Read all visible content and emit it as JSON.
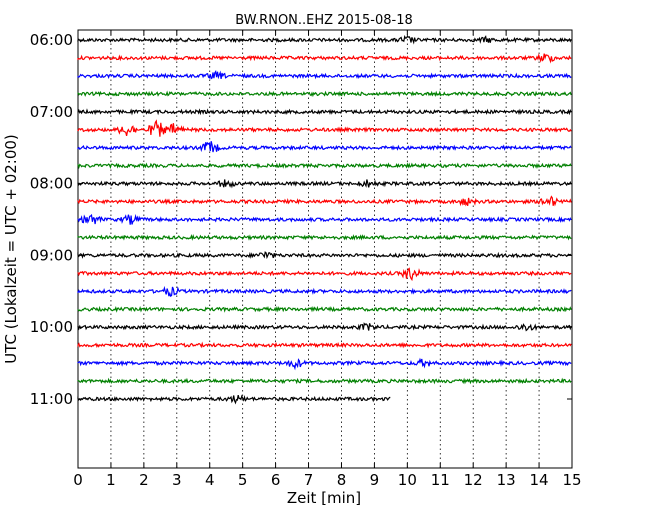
{
  "chart_data": {
    "type": "line",
    "title": "BW.RNON..EHZ 2015-08-18",
    "xlabel": "Zeit  [min]",
    "ylabel": "UTC (Lokalzeit = UTC + 02:00)",
    "xlim": [
      0,
      15
    ],
    "x_ticks": [
      "0",
      "1",
      "2",
      "3",
      "4",
      "5",
      "6",
      "7",
      "8",
      "9",
      "10",
      "11",
      "12",
      "13",
      "14",
      "15"
    ],
    "y_tick_labels": [
      "06:00",
      "07:00",
      "08:00",
      "09:00",
      "10:00",
      "11:00"
    ],
    "y_ticks_hours": [
      6,
      7,
      8,
      9,
      10,
      11
    ],
    "row_interval_min": 15,
    "grid": "vertical dotted",
    "color_cycle": [
      "#000000",
      "#ff0000",
      "#0000ff",
      "#008000"
    ],
    "traces": [
      {
        "start": "06:00",
        "end_min": 15,
        "color": "black",
        "events": [
          [
            10,
            3
          ],
          [
            12.4,
            2
          ]
        ]
      },
      {
        "start": "06:15",
        "end_min": 15,
        "color": "red",
        "events": [
          [
            14.2,
            4
          ]
        ]
      },
      {
        "start": "06:30",
        "end_min": 15,
        "color": "blue",
        "events": [
          [
            4.2,
            3
          ]
        ]
      },
      {
        "start": "06:45",
        "end_min": 15,
        "color": "green",
        "events": []
      },
      {
        "start": "07:00",
        "end_min": 15,
        "color": "black",
        "events": []
      },
      {
        "start": "07:15",
        "end_min": 15,
        "color": "red",
        "events": [
          [
            1.5,
            6
          ],
          [
            2.4,
            8
          ],
          [
            2.9,
            5
          ]
        ]
      },
      {
        "start": "07:30",
        "end_min": 15,
        "color": "blue",
        "events": [
          [
            4,
            6
          ]
        ]
      },
      {
        "start": "07:45",
        "end_min": 15,
        "color": "green",
        "events": []
      },
      {
        "start": "08:00",
        "end_min": 15,
        "color": "black",
        "events": [
          [
            4.5,
            3
          ],
          [
            8.8,
            3
          ]
        ]
      },
      {
        "start": "08:15",
        "end_min": 15,
        "color": "red",
        "events": [
          [
            14.3,
            5
          ],
          [
            11.8,
            3
          ]
        ]
      },
      {
        "start": "08:30",
        "end_min": 15,
        "color": "blue",
        "events": [
          [
            0.4,
            5
          ],
          [
            1.6,
            4
          ]
        ]
      },
      {
        "start": "08:45",
        "end_min": 15,
        "color": "green",
        "events": []
      },
      {
        "start": "09:00",
        "end_min": 15,
        "color": "black",
        "events": [
          [
            5.7,
            3
          ]
        ]
      },
      {
        "start": "09:15",
        "end_min": 15,
        "color": "red",
        "events": [
          [
            10.1,
            6
          ]
        ]
      },
      {
        "start": "09:30",
        "end_min": 15,
        "color": "blue",
        "events": [
          [
            2.8,
            4
          ]
        ]
      },
      {
        "start": "09:45",
        "end_min": 15,
        "color": "green",
        "events": []
      },
      {
        "start": "10:00",
        "end_min": 15,
        "color": "black",
        "events": [
          [
            8.8,
            3
          ],
          [
            13.6,
            3
          ]
        ]
      },
      {
        "start": "10:15",
        "end_min": 15,
        "color": "red",
        "events": []
      },
      {
        "start": "10:30",
        "end_min": 15,
        "color": "blue",
        "events": [
          [
            6.6,
            4
          ],
          [
            10.5,
            3
          ]
        ]
      },
      {
        "start": "10:45",
        "end_min": 15,
        "color": "green",
        "events": []
      },
      {
        "start": "11:00",
        "end_min": 9.5,
        "color": "black",
        "events": [
          [
            4.8,
            3
          ]
        ]
      }
    ]
  }
}
